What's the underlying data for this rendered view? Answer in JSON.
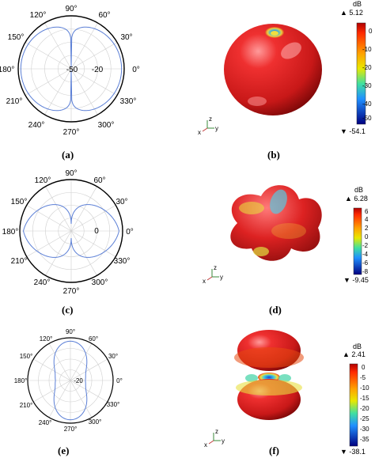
{
  "panels": {
    "a": {
      "label": "(a)",
      "angle_labels": [
        "90°",
        "60°",
        "30°",
        "0°",
        "330°",
        "300°",
        "270°",
        "240°",
        "210°",
        "180°",
        "150°",
        "120°"
      ],
      "radial_labels": [
        "-50",
        "-20"
      ]
    },
    "b": {
      "label": "(b)",
      "colorbar": {
        "unit": "dB",
        "max": "▲ 5.12",
        "min": "▼ -54.1",
        "ticks": [
          "0",
          "-10",
          "-20",
          "-30",
          "-40",
          "-50"
        ]
      },
      "axes": {
        "x": "x",
        "y": "y",
        "z": "z"
      }
    },
    "c": {
      "label": "(c)",
      "angle_labels": [
        "90°",
        "60°",
        "30°",
        "0°",
        "330°",
        "300°",
        "270°",
        "240°",
        "210°",
        "180°",
        "150°",
        "120°"
      ],
      "radial_labels": [
        "0"
      ]
    },
    "d": {
      "label": "(d)",
      "colorbar": {
        "unit": "dB",
        "max": "▲ 6.28",
        "min": "▼ -9.45",
        "ticks": [
          "6",
          "4",
          "2",
          "0",
          "-2",
          "-4",
          "-6",
          "-8"
        ]
      },
      "axes": {
        "x": "x",
        "y": "y",
        "z": "z"
      }
    },
    "e": {
      "label": "(e)",
      "angle_labels": [
        "90°",
        "60°",
        "30°",
        "0°",
        "330°",
        "300°",
        "270°",
        "240°",
        "210°",
        "180°",
        "150°",
        "120°"
      ],
      "radial_labels": [
        "-20"
      ]
    },
    "f": {
      "label": "(f)",
      "colorbar": {
        "unit": "dB",
        "max": "▲ 2.41",
        "min": "▼ -38.1",
        "ticks": [
          "0",
          "-5",
          "-10",
          "-15",
          "-20",
          "-25",
          "-30",
          "-35"
        ]
      },
      "axes": {
        "x": "x",
        "y": "y",
        "z": "z"
      }
    }
  },
  "colors": {
    "curve": "#5b7fd6",
    "grid": "#bbbbbb",
    "pattern_hot": "#d81e1e"
  }
}
